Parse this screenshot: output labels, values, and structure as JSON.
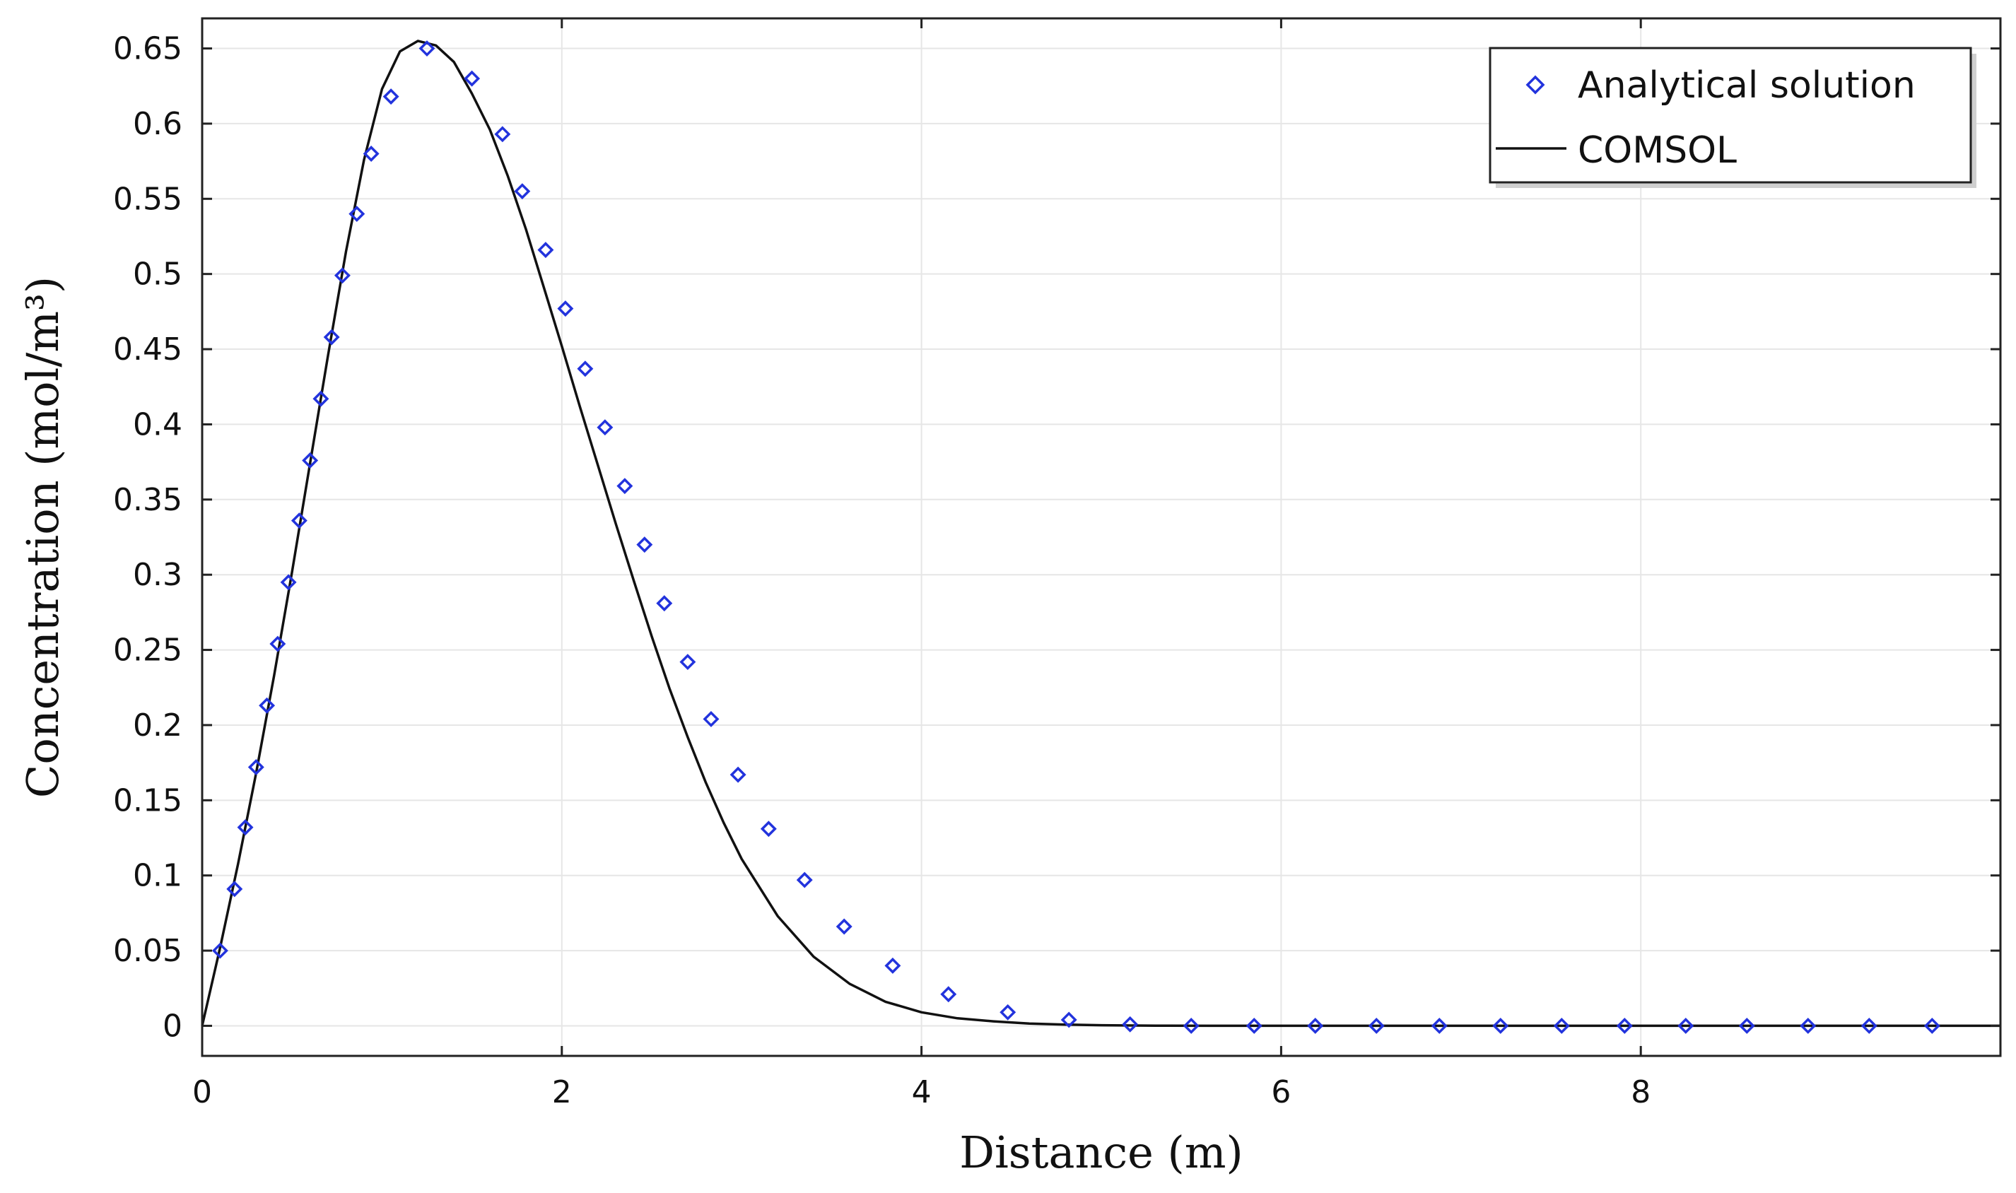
{
  "chart_data": {
    "type": "line",
    "title": "",
    "xlabel": "Distance (m)",
    "ylabel": "Concentration (mol/m³)",
    "xlim": [
      0,
      10
    ],
    "ylim": [
      -0.02,
      0.67
    ],
    "x_ticks": [
      0,
      2,
      4,
      6,
      8
    ],
    "x_tick_labels": [
      "0",
      "2",
      "4",
      "6",
      "8"
    ],
    "y_ticks": [
      0,
      0.05,
      0.1,
      0.15,
      0.2,
      0.25,
      0.3,
      0.35,
      0.4,
      0.45,
      0.5,
      0.55,
      0.6,
      0.65
    ],
    "y_tick_labels": [
      "0",
      "0.05",
      "0.1",
      "0.15",
      "0.2",
      "0.25",
      "0.3",
      "0.35",
      "0.4",
      "0.45",
      "0.5",
      "0.55",
      "0.6",
      "0.65"
    ],
    "grid": true,
    "legend_position": "top-right",
    "series": [
      {
        "name": "Analytical solution",
        "style": "markers",
        "marker": "diamond",
        "color": "#2233dd",
        "x": [
          0.1,
          0.18,
          0.24,
          0.3,
          0.36,
          0.42,
          0.48,
          0.54,
          0.6,
          0.66,
          0.72,
          0.78,
          0.86,
          0.94,
          1.05,
          1.25,
          1.5,
          1.67,
          1.78,
          1.91,
          2.02,
          2.13,
          2.24,
          2.35,
          2.46,
          2.57,
          2.7,
          2.83,
          2.98,
          3.15,
          3.35,
          3.57,
          3.84,
          4.15,
          4.48,
          4.82,
          5.16,
          5.5,
          5.85,
          6.19,
          6.53,
          6.88,
          7.22,
          7.56,
          7.91,
          8.25,
          8.59,
          8.93,
          9.27,
          9.62
        ],
        "y": [
          0.05,
          0.091,
          0.132,
          0.172,
          0.213,
          0.254,
          0.295,
          0.336,
          0.376,
          0.417,
          0.458,
          0.499,
          0.54,
          0.58,
          0.618,
          0.65,
          0.63,
          0.593,
          0.555,
          0.516,
          0.477,
          0.437,
          0.398,
          0.359,
          0.32,
          0.281,
          0.242,
          0.204,
          0.167,
          0.131,
          0.097,
          0.066,
          0.04,
          0.021,
          0.009,
          0.004,
          0.001,
          0,
          0,
          0,
          0,
          0,
          0,
          0,
          0,
          0,
          0,
          0,
          0,
          0
        ]
      },
      {
        "name": "COMSOL",
        "style": "line",
        "color": "#111111",
        "x": [
          0,
          0.1,
          0.2,
          0.3,
          0.4,
          0.5,
          0.6,
          0.7,
          0.8,
          0.9,
          1.0,
          1.1,
          1.2,
          1.3,
          1.4,
          1.5,
          1.6,
          1.7,
          1.8,
          1.9,
          2.0,
          2.1,
          2.2,
          2.3,
          2.4,
          2.5,
          2.6,
          2.7,
          2.8,
          2.9,
          3.0,
          3.2,
          3.4,
          3.6,
          3.8,
          4.0,
          4.2,
          4.4,
          4.6,
          4.8,
          5.0,
          5.3,
          5.6,
          6.0,
          7.0,
          8.0,
          9.0,
          10.0
        ],
        "y": [
          0,
          0.052,
          0.108,
          0.168,
          0.233,
          0.302,
          0.374,
          0.446,
          0.515,
          0.576,
          0.623,
          0.648,
          0.655,
          0.652,
          0.641,
          0.62,
          0.596,
          0.565,
          0.53,
          0.491,
          0.452,
          0.412,
          0.373,
          0.334,
          0.296,
          0.259,
          0.224,
          0.192,
          0.162,
          0.135,
          0.111,
          0.073,
          0.046,
          0.028,
          0.016,
          0.009,
          0.005,
          0.003,
          0.0015,
          0.0008,
          0.0004,
          0.0001,
          0,
          0,
          0,
          0,
          0,
          0
        ]
      }
    ]
  }
}
